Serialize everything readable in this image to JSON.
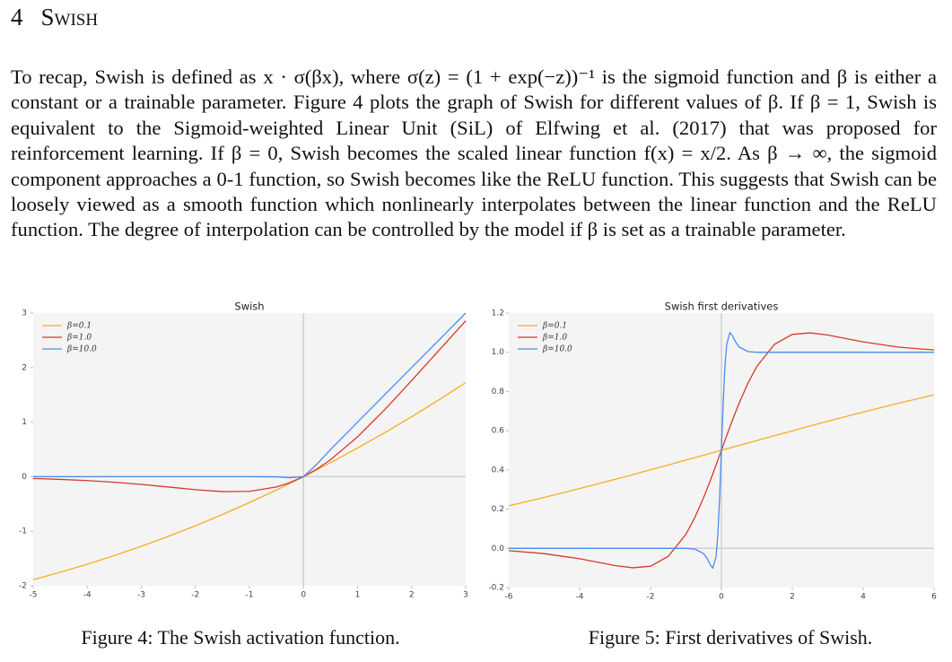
{
  "section": {
    "number": "4",
    "title": "Swish"
  },
  "paragraph": "To recap, Swish is defined as x · σ(βx), where σ(z) = (1 + exp(−z))⁻¹ is the sigmoid function and β is either a constant or a trainable parameter. Figure 4 plots the graph of Swish for different values of β. If β = 1, Swish is equivalent to the Sigmoid-weighted Linear Unit (SiL) of Elfwing et al. (2017) that was proposed for reinforcement learning. If β = 0, Swish becomes the scaled linear function f(x) = x/2. As β → ∞, the sigmoid component approaches a 0-1 function, so Swish becomes like the ReLU function. This suggests that Swish can be loosely viewed as a smooth function which nonlinearly interpolates between the linear function and the ReLU function. The degree of interpolation can be controlled by the model if β is set as a trainable parameter.",
  "chart_data": [
    {
      "type": "line",
      "title": "Swish",
      "caption": "Figure 4: The Swish activation function.",
      "x": [
        -5,
        -4.5,
        -4,
        -3.5,
        -3,
        -2.5,
        -2,
        -1.5,
        -1,
        -0.5,
        -0.25,
        0,
        0.25,
        0.5,
        1,
        1.5,
        2,
        2.5,
        3
      ],
      "series": [
        {
          "name": "β=0.1",
          "color": "#f2b01e",
          "values": [
            -1.888,
            -1.752,
            -1.605,
            -1.447,
            -1.277,
            -1.094,
            -0.9,
            -0.694,
            -0.475,
            -0.244,
            -0.123,
            0,
            0.127,
            0.256,
            0.525,
            0.806,
            1.1,
            1.406,
            1.723
          ]
        },
        {
          "name": "β=1.0",
          "color": "#d8382a",
          "values": [
            -0.033,
            -0.05,
            -0.072,
            -0.103,
            -0.142,
            -0.19,
            -0.238,
            -0.274,
            -0.269,
            -0.189,
            -0.109,
            0,
            0.141,
            0.311,
            0.731,
            1.226,
            1.762,
            2.31,
            2.858
          ]
        },
        {
          "name": "β=10.0",
          "color": "#4a8cf0",
          "values": [
            0,
            0,
            0,
            0,
            0,
            0,
            0,
            0,
            0,
            -0.003,
            -0.019,
            0,
            0.231,
            0.497,
            1,
            1.5,
            2,
            2.5,
            3
          ]
        }
      ],
      "xlim": [
        -5,
        3
      ],
      "xticks": [
        -5,
        -4,
        -3,
        -2,
        -1,
        0,
        1,
        2,
        3
      ],
      "ylim": [
        -2,
        3
      ],
      "yticks": [
        -2,
        -1,
        0,
        1,
        2,
        3
      ],
      "legend": "upper left"
    },
    {
      "type": "line",
      "title": "Swish first derivatives",
      "caption": "Figure 5: First derivatives of Swish.",
      "x": [
        -6,
        -5,
        -4,
        -3,
        -2.5,
        -2,
        -1.5,
        -1,
        -0.75,
        -0.5,
        -0.4,
        -0.3,
        -0.24,
        -0.15,
        -0.1,
        -0.05,
        0,
        0.05,
        0.1,
        0.15,
        0.24,
        0.3,
        0.4,
        0.5,
        0.75,
        1,
        1.5,
        2,
        2.5,
        3,
        4,
        5,
        6
      ],
      "series": [
        {
          "name": "β=0.1",
          "color": "#f2b01e",
          "values": [
            0.217,
            0.26,
            0.305,
            0.352,
            0.376,
            0.401,
            0.425,
            0.45,
            0.463,
            0.475,
            0.48,
            0.485,
            0.488,
            0.493,
            0.495,
            0.498,
            0.5,
            0.503,
            0.505,
            0.508,
            0.512,
            0.515,
            0.52,
            0.525,
            0.537,
            0.55,
            0.575,
            0.599,
            0.624,
            0.648,
            0.695,
            0.74,
            0.783
          ]
        },
        {
          "name": "β=1.0",
          "color": "#d8382a",
          "values": [
            -0.012,
            -0.027,
            -0.053,
            -0.088,
            -0.099,
            -0.091,
            -0.041,
            0.072,
            0.157,
            0.26,
            0.305,
            0.352,
            0.381,
            0.425,
            0.45,
            0.475,
            0.5,
            0.525,
            0.55,
            0.575,
            0.619,
            0.648,
            0.695,
            0.74,
            0.843,
            0.928,
            1.041,
            1.091,
            1.099,
            1.088,
            1.053,
            1.026,
            1.012
          ]
        },
        {
          "name": "β=10.0",
          "color": "#4a8cf0",
          "values": [
            0,
            0,
            0,
            0,
            0,
            0,
            0,
            0,
            -0.004,
            -0.027,
            -0.053,
            -0.088,
            -0.1,
            -0.041,
            0.072,
            0.26,
            0.5,
            0.74,
            0.928,
            1.041,
            1.1,
            1.088,
            1.053,
            1.027,
            1.004,
            1,
            1,
            1,
            1,
            1,
            1,
            1,
            1
          ]
        }
      ],
      "xlim": [
        -6,
        6
      ],
      "xticks": [
        -6,
        -4,
        -2,
        0,
        2,
        4,
        6
      ],
      "ylim": [
        -0.2,
        1.2
      ],
      "yticks": [
        -0.2,
        {
          "value": 0,
          "label": "0.0"
        },
        0.2,
        0.4,
        0.6,
        0.8,
        {
          "value": 1,
          "label": "1.0"
        },
        1.2
      ],
      "legend": "upper left"
    }
  ]
}
